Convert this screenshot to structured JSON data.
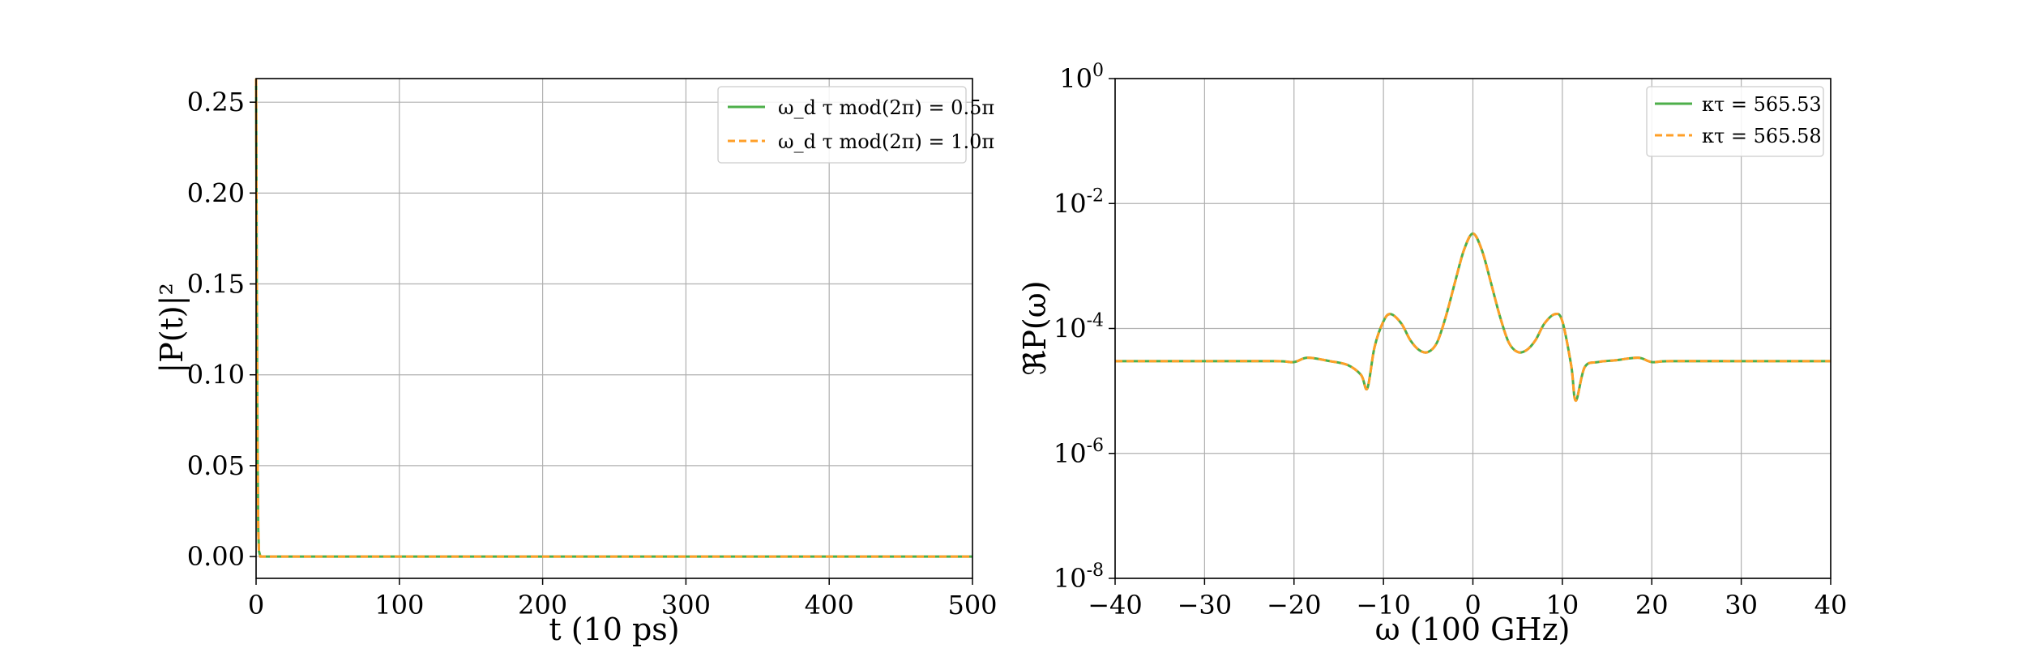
{
  "colors": {
    "series1": "#4daf4a",
    "series2": "#ff9f27",
    "grid": "#b0b0b0",
    "background": "#ffffff"
  },
  "chart_data": [
    {
      "type": "line",
      "title": "",
      "xlabel": "t (10 ps)",
      "ylabel": "|P(t)|²",
      "xlim": [
        0,
        500
      ],
      "ylim": [
        -0.012,
        0.263
      ],
      "xticks": [
        "0",
        "100",
        "200",
        "300",
        "400",
        "500"
      ],
      "xtick_values": [
        0,
        100,
        200,
        300,
        400,
        500
      ],
      "yticks": [
        "0.00",
        "0.05",
        "0.10",
        "0.15",
        "0.20",
        "0.25"
      ],
      "ytick_values": [
        0,
        0.05,
        0.1,
        0.15,
        0.2,
        0.25
      ],
      "grid": true,
      "legend_position": "top-right",
      "x": [
        0,
        0.5,
        1,
        1.5,
        2,
        3,
        500
      ],
      "series": [
        {
          "name": "ω_d τ mod(2π) = 0.5π",
          "style": "solid",
          "y": [
            0.263,
            0.15,
            0.06,
            0.015,
            0.003,
            0.0,
            0.0
          ]
        },
        {
          "name": "ω_d τ mod(2π) = 1.0π",
          "style": "dashed",
          "y": [
            0.263,
            0.15,
            0.06,
            0.015,
            0.003,
            0.0,
            0.0
          ]
        }
      ]
    },
    {
      "type": "line",
      "title": "",
      "xlabel": "ω (100 GHz)",
      "ylabel": "ℜP(ω)",
      "xlim": [
        -40,
        40
      ],
      "ylim_log10": [
        -8,
        0
      ],
      "yscale": "log",
      "xticks": [
        "−40",
        "−30",
        "−20",
        "−10",
        "0",
        "10",
        "20",
        "30",
        "40"
      ],
      "xtick_values": [
        -40,
        -30,
        -20,
        -10,
        0,
        10,
        20,
        30,
        40
      ],
      "yticks": [
        {
          "base": "10",
          "exp": "0",
          "value": 1
        },
        {
          "base": "10",
          "exp": "-2",
          "value": 0.01
        },
        {
          "base": "10",
          "exp": "-4",
          "value": 0.0001
        },
        {
          "base": "10",
          "exp": "-6",
          "value": 1e-06
        },
        {
          "base": "10",
          "exp": "-8",
          "value": 1e-08
        }
      ],
      "grid": true,
      "legend_position": "top-right",
      "x": [
        -40,
        -30,
        -22,
        -20,
        -18.5,
        -16,
        -14,
        -12.5,
        -11.8,
        -11,
        -10,
        -9.2,
        -8,
        -7,
        -6,
        -5,
        -4,
        -3,
        -2,
        -1,
        0,
        1,
        2,
        3,
        4,
        5,
        6,
        7,
        8,
        9.2,
        10,
        11,
        11.5,
        12.5,
        14,
        16,
        18.5,
        20,
        22,
        30,
        40
      ],
      "series": [
        {
          "name": "κτ = 565.53",
          "style": "solid",
          "y": [
            3e-05,
            3e-05,
            3e-05,
            2.9e-05,
            3.4e-05,
            3e-05,
            2.6e-05,
            1.8e-05,
            1.1e-05,
            5e-05,
            0.00013,
            0.00017,
            0.00012,
            6.5e-05,
            4.5e-05,
            4.2e-05,
            6e-05,
            0.00016,
            0.00055,
            0.0018,
            0.0033,
            0.0018,
            0.00055,
            0.00016,
            6e-05,
            4.2e-05,
            4.5e-05,
            6.5e-05,
            0.00012,
            0.00017,
            0.00013,
            2.5e-05,
            7e-06,
            2.4e-05,
            2.9e-05,
            3.1e-05,
            3.4e-05,
            2.9e-05,
            3e-05,
            3e-05,
            3e-05
          ]
        },
        {
          "name": "κτ = 565.58",
          "style": "dashed",
          "y": [
            3e-05,
            3e-05,
            3e-05,
            2.9e-05,
            3.4e-05,
            3e-05,
            2.6e-05,
            1.8e-05,
            1.1e-05,
            5e-05,
            0.00013,
            0.00017,
            0.00012,
            6.5e-05,
            4.5e-05,
            4.2e-05,
            6e-05,
            0.00016,
            0.00055,
            0.0018,
            0.0033,
            0.0018,
            0.00055,
            0.00016,
            6e-05,
            4.2e-05,
            4.5e-05,
            6.5e-05,
            0.00012,
            0.00017,
            0.00013,
            2.5e-05,
            7e-06,
            2.4e-05,
            2.9e-05,
            3.1e-05,
            3.4e-05,
            2.9e-05,
            3e-05,
            3e-05,
            3e-05
          ]
        }
      ]
    }
  ]
}
